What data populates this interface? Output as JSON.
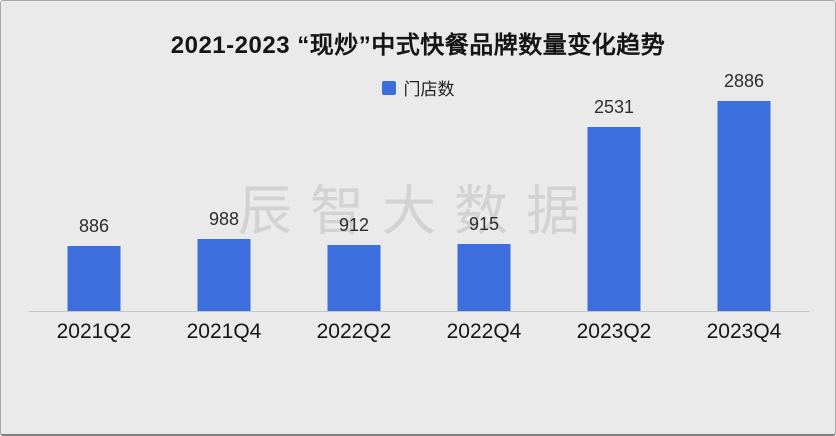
{
  "page": {
    "background_color": "#eaeaea"
  },
  "header": {
    "title": "2021-2023 “现炒”中式快餐品牌数量变化趋势"
  },
  "legend": {
    "label": "门店数",
    "swatch_color": "#3d6edd"
  },
  "watermark": {
    "text": "辰智大数据"
  },
  "chart_data": {
    "type": "bar",
    "title": "2021-2023 “现炒”中式快餐品牌数量变化趋势",
    "series_name": "门店数",
    "categories": [
      "2021Q2",
      "2021Q4",
      "2022Q2",
      "2022Q4",
      "2023Q2",
      "2023Q4"
    ],
    "values": [
      886,
      988,
      912,
      915,
      2531,
      2886
    ],
    "bar_color": "#3d6edd",
    "xlabel": "",
    "ylabel": "",
    "ylim": [
      0,
      2950
    ],
    "grid": false,
    "value_labels": true,
    "legend_position": "top-center",
    "y_axis_visible": false,
    "x_axis_line_color": "#c6c6c6"
  }
}
